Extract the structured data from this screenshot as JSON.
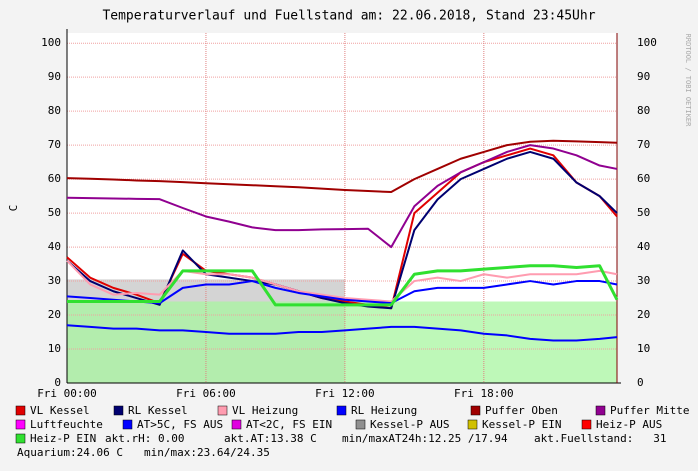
{
  "chart_data": {
    "type": "line",
    "title": "Temperaturverlauf und Fuellstand am: 22.06.2018, Stand 23:45Uhr",
    "y_label": "C",
    "watermark": "RRDTOOL / TOBI OETIKER",
    "x": [
      0,
      1,
      2,
      3,
      4,
      5,
      6,
      7,
      8,
      9,
      10,
      11,
      12,
      13,
      14,
      15,
      16,
      17,
      18,
      19,
      20,
      21,
      22,
      23,
      23.75
    ],
    "xlim": [
      0,
      23.75
    ],
    "xticks": [
      {
        "value": 0,
        "label": "Fri 00:00"
      },
      {
        "value": 6,
        "label": "Fri 06:00"
      },
      {
        "value": 12,
        "label": "Fri 12:00"
      },
      {
        "value": 18,
        "label": "Fri 18:00"
      }
    ],
    "ylim": [
      0,
      103
    ],
    "yticks": [
      0,
      10,
      20,
      30,
      40,
      50,
      60,
      70,
      80,
      90,
      100
    ],
    "grid": true,
    "areas": [
      {
        "color": "#d4d4d4",
        "values": [
          30.5,
          30.5,
          30.5,
          30.5,
          30.5,
          30.5,
          30.5,
          30.5,
          30.5,
          30.5,
          30.5,
          30.5,
          30.5,
          null,
          null,
          null,
          null,
          null,
          null,
          null,
          null,
          null,
          null,
          null,
          null
        ]
      },
      {
        "color": "#a8f5a0",
        "values": [
          24,
          24,
          24,
          24,
          24,
          24,
          24,
          24,
          24,
          24,
          24,
          24,
          24,
          24,
          24,
          24,
          24,
          24,
          24,
          24,
          24,
          24,
          24,
          24,
          24
        ]
      }
    ],
    "series": [
      {
        "name": "VL Kessel",
        "color": "#e00000",
        "values": [
          37,
          31,
          28,
          26,
          23.5,
          38,
          33,
          32,
          31,
          29,
          27,
          25,
          24,
          23,
          22,
          50,
          56,
          62,
          65,
          67,
          69,
          67,
          59,
          55,
          49
        ]
      },
      {
        "name": "RL Kessel",
        "color": "#000070",
        "values": [
          36,
          30,
          27,
          25,
          23,
          39,
          32,
          31,
          30,
          29,
          27,
          25,
          23.5,
          22.5,
          22,
          45,
          54,
          60,
          63,
          66,
          68,
          66,
          59,
          55,
          50
        ]
      },
      {
        "name": "VL Heizung",
        "color": "#ff9cb0",
        "values": [
          36,
          29,
          26,
          26.5,
          26,
          33,
          32,
          32,
          31,
          29,
          27,
          26,
          25,
          24.5,
          24,
          30,
          31,
          30,
          32,
          31,
          32,
          32,
          32,
          33,
          32
        ]
      },
      {
        "name": "RL Heizung",
        "color": "#0000ff",
        "values": [
          25.5,
          25,
          24.5,
          24,
          23.5,
          28,
          29,
          29,
          30,
          28,
          26.5,
          25.5,
          24.5,
          24,
          23.5,
          27,
          28,
          28,
          28,
          29,
          30,
          29,
          30,
          30,
          29
        ]
      },
      {
        "name": "Puffer Oben",
        "color": "#a00000",
        "values": [
          60.3,
          60.1,
          59.9,
          59.6,
          59.4,
          59.1,
          58.8,
          58.5,
          58.2,
          57.9,
          57.6,
          57.2,
          56.8,
          56.5,
          56.2,
          60,
          63,
          66,
          68,
          70,
          71,
          71.3,
          71.1,
          70.9,
          70.7
        ]
      },
      {
        "name": "Puffer Mitte",
        "color": "#900090",
        "values": [
          54.5,
          54.4,
          54.3,
          54.2,
          54.1,
          51.5,
          49,
          47.5,
          45.8,
          45,
          45,
          45.2,
          45.3,
          45.4,
          40,
          52,
          58,
          62,
          65,
          68,
          70,
          69,
          67,
          64,
          63
        ]
      },
      {
        "name": "Luftfeuchte",
        "color": "#ff00ff"
      },
      {
        "name": "AT>5C, FS AUS",
        "color": "#0000ff",
        "values": [
          17,
          16.5,
          16,
          16,
          15.5,
          15.5,
          15,
          14.5,
          14.5,
          14.5,
          15,
          15,
          15.5,
          16,
          16.5,
          16.5,
          16,
          15.5,
          14.5,
          14,
          13,
          12.5,
          12.5,
          13,
          13.5
        ]
      },
      {
        "name": "AT<2C, FS EIN",
        "color": "#e000e0"
      },
      {
        "name": "Kessel-P AUS",
        "color": "#909090"
      },
      {
        "name": "Kessel-P EIN",
        "color": "#d0c000"
      },
      {
        "name": "Heiz-P AUS",
        "color": "#ff0000"
      },
      {
        "name": "Heiz-P EIN",
        "color": "#30e030",
        "values": [
          24,
          24,
          24,
          24,
          24,
          33,
          33,
          33,
          33,
          23,
          23,
          23,
          23,
          23,
          23,
          32,
          33,
          33,
          33.5,
          34,
          34.5,
          34.5,
          34,
          34.5,
          24.5
        ]
      }
    ],
    "status_texts": [
      "akt.rH: 0.00",
      "akt.AT:13.38 C",
      "min/maxAT24h:12.25 /17.94",
      "akt.Fuellstand:   31",
      "Aquarium:24.06 C",
      "min/max:23.64/24.35"
    ]
  }
}
